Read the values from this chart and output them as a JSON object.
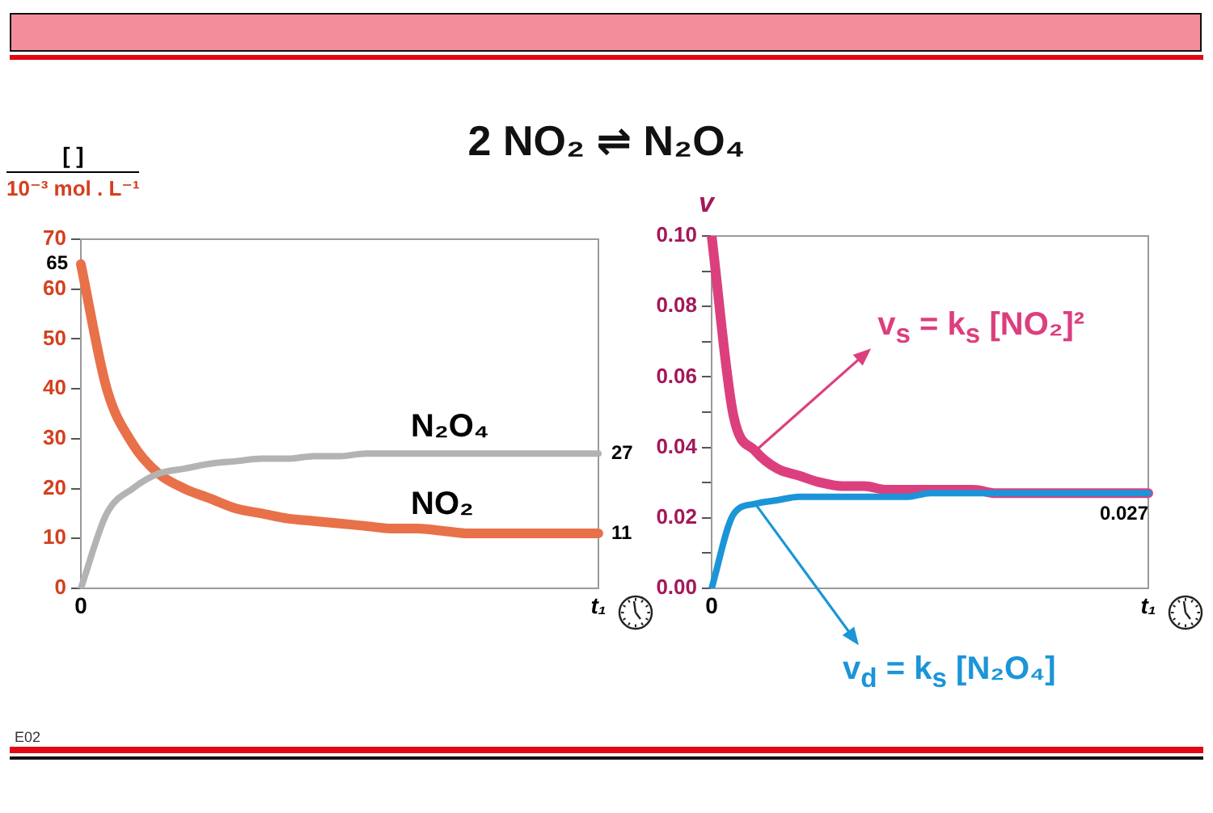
{
  "chart_data": [
    {
      "type": "line",
      "title": "2 NO₂ ⇌ N₂O₄",
      "ylabel": "[ ]\n10⁻³ mol . L⁻¹",
      "annotations": [
        "E02"
      ],
      "categories": [
        "0",
        null,
        null,
        null,
        null,
        null,
        null,
        null,
        null,
        null,
        null,
        null,
        null,
        null,
        null,
        null,
        null,
        null,
        null,
        null,
        "t₁"
      ],
      "series": [
        {
          "name": "NO₂",
          "color": "#e8714a",
          "values": [
            65,
            40,
            29,
            23,
            20,
            18,
            16,
            15,
            14,
            13.5,
            13,
            12.5,
            12,
            12,
            11.5,
            11,
            11,
            11,
            11,
            11,
            11
          ],
          "value_labels": [
            "65",
            null,
            null,
            null,
            null,
            null,
            null,
            null,
            null,
            null,
            null,
            null,
            null,
            null,
            null,
            null,
            null,
            null,
            null,
            null,
            "11"
          ]
        },
        {
          "name": "N₂O₄",
          "color": "#b3b3b3",
          "values": [
            0,
            15,
            20,
            23,
            24,
            25,
            25.5,
            26,
            26,
            26.5,
            26.5,
            27,
            27,
            27,
            27,
            27,
            27,
            27,
            27,
            27,
            27
          ],
          "value_labels": [
            null,
            null,
            null,
            null,
            null,
            null,
            null,
            null,
            null,
            null,
            null,
            null,
            null,
            null,
            null,
            null,
            null,
            null,
            null,
            null,
            "27"
          ]
        }
      ],
      "ylim": [
        0,
        70
      ],
      "yticks": [
        0,
        10,
        20,
        30,
        40,
        50,
        60,
        70
      ]
    },
    {
      "type": "line",
      "ylabel": "v",
      "categories": [
        "0",
        null,
        null,
        null,
        null,
        null,
        null,
        null,
        null,
        null,
        null,
        null,
        null,
        null,
        null,
        null,
        null,
        null,
        null,
        null,
        "t₁"
      ],
      "series": [
        {
          "name": "v$_{s}$ = k$_{s}$ [NO₂]²",
          "color": "#dc3f7e",
          "values": [
            0.1,
            0.049,
            0.039,
            0.034,
            0.032,
            0.03,
            0.029,
            0.029,
            0.028,
            0.028,
            0.028,
            0.028,
            0.028,
            0.027,
            0.027,
            0.027,
            0.027,
            0.027,
            0.027,
            0.027,
            0.027
          ]
        },
        {
          "name": "v$_{d}$ = k$_{s}$ [N₂O₄]",
          "color": "#1b95d8",
          "values": [
            0,
            0.021,
            0.024,
            0.025,
            0.026,
            0.026,
            0.026,
            0.026,
            0.026,
            0.026,
            0.027,
            0.027,
            0.027,
            0.027,
            0.027,
            0.027,
            0.027,
            0.027,
            0.027,
            0.027,
            0.027
          ],
          "value_labels": [
            null,
            null,
            null,
            null,
            null,
            null,
            null,
            null,
            null,
            null,
            null,
            null,
            null,
            null,
            null,
            null,
            null,
            null,
            null,
            null,
            "0.027"
          ]
        }
      ],
      "ylim": [
        0,
        0.1
      ],
      "yticks": [
        {
          "value": 0,
          "label": "0.00"
        },
        {
          "value": 0.01,
          "label": null
        },
        {
          "value": 0.02,
          "label": "0.02"
        },
        {
          "value": 0.03,
          "label": null
        },
        {
          "value": 0.04,
          "label": "0.04"
        },
        {
          "value": 0.05,
          "label": null
        },
        {
          "value": 0.06,
          "label": "0.06"
        },
        {
          "value": 0.07,
          "label": null
        },
        {
          "value": 0.08,
          "label": "0.08"
        },
        {
          "value": 0.09,
          "label": null
        },
        {
          "value": 0.1,
          "label": "0.10"
        }
      ]
    }
  ]
}
